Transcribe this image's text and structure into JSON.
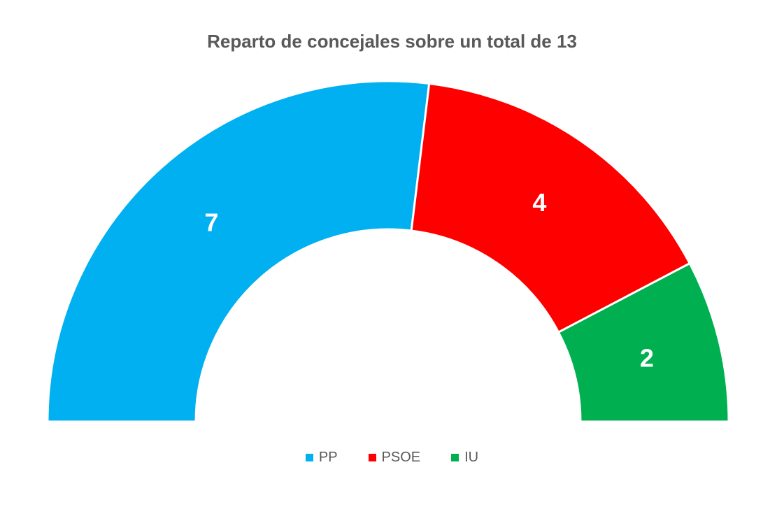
{
  "chart_data": {
    "type": "pie",
    "variant": "semicircle-donut",
    "title": "Reparto de concejales sobre un total de 13",
    "total": 13,
    "categories": [
      "PP",
      "PSOE",
      "IU"
    ],
    "values": [
      7,
      4,
      2
    ],
    "colors": [
      "#00B0F0",
      "#FF0000",
      "#00B050"
    ],
    "data_labels": [
      "7",
      "4",
      "2"
    ],
    "legend": "bottom"
  }
}
